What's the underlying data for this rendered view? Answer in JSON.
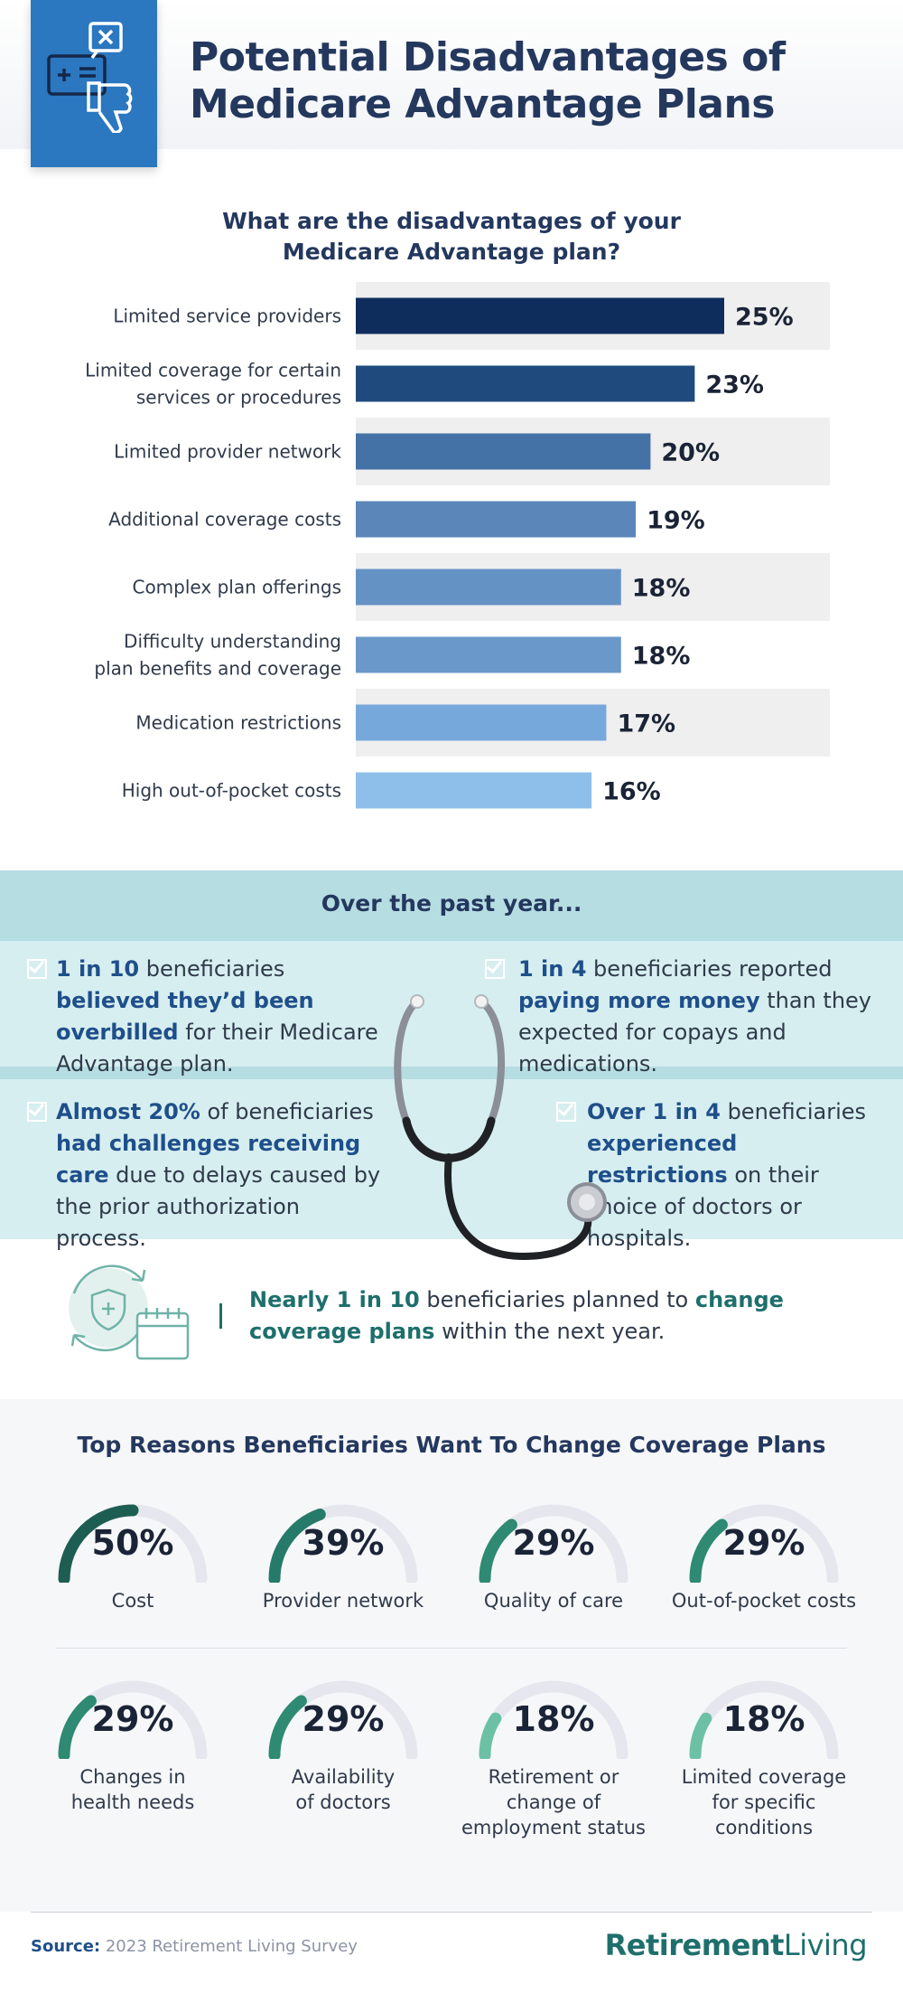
{
  "header": {
    "title_line1": "Potential Disadvantages of",
    "title_line2": "Medicare Advantage Plans",
    "icon": "medical-card-thumbs-down-icon"
  },
  "chart_data": {
    "type": "bar",
    "orientation": "horizontal",
    "title_line1": "What are the disadvantages of your",
    "title_line2": "Medicare Advantage plan?",
    "categories": [
      [
        "Limited service providers"
      ],
      [
        "Limited coverage for certain",
        "services or procedures"
      ],
      [
        "Limited provider network"
      ],
      [
        "Additional coverage costs"
      ],
      [
        "Complex plan offerings"
      ],
      [
        "Difficulty understanding",
        "plan benefits and coverage"
      ],
      [
        "Medication restrictions"
      ],
      [
        "High out-of-pocket costs"
      ]
    ],
    "values": [
      25,
      23,
      20,
      19,
      18,
      18,
      17,
      16
    ],
    "value_labels": [
      "25%",
      "23%",
      "20%",
      "19%",
      "18%",
      "18%",
      "17%",
      "16%"
    ],
    "bar_colors": [
      "#0f2d5c",
      "#1f4a7e",
      "#4472a6",
      "#5a86b9",
      "#6592c4",
      "#6a98ca",
      "#76a8dc",
      "#8dbfea"
    ],
    "axis_max": 30,
    "grid": false
  },
  "past_year": {
    "title": "Over the past year...",
    "stat1": {
      "a": "1 in 10",
      "b": " beneficiaries ",
      "c": "believed they’d been overbilled",
      "d": " for their Medicare Advantage plan."
    },
    "stat2": {
      "a": "1 in 4",
      "b": " beneficiaries reported ",
      "c": "paying more money",
      "d": " than they expected for copays and medications."
    },
    "stat3": {
      "a": "Almost 20%",
      "b": " of beneficiaries ",
      "c": "had challenges receiving care",
      "d": " due to delays caused by the prior authorization process."
    },
    "stat4": {
      "a": "Over 1 in 4",
      "b": " beneficiaries ",
      "c": "experienced restrictions",
      "d": " on their choice of doctors or hospitals."
    },
    "nearly": {
      "a": "Nearly 1 in 10",
      "b": " beneficiaries planned to ",
      "c": "change coverage plans",
      "d": " within the next year."
    }
  },
  "reasons": {
    "title": "Top Reasons Beneficiaries Want To Change Coverage Plans",
    "items": [
      {
        "pct": "50%",
        "value": 50,
        "label": "Cost",
        "color": "#1e5e52"
      },
      {
        "pct": "39%",
        "value": 39,
        "label": "Provider network",
        "color": "#267a69"
      },
      {
        "pct": "29%",
        "value": 29,
        "label": "Quality of care",
        "color": "#2e8a72"
      },
      {
        "pct": "29%",
        "value": 29,
        "label": "Out-of-pocket costs",
        "color": "#2e8a72"
      },
      {
        "pct": "29%",
        "value": 29,
        "label": "Changes in\nhealth needs",
        "color": "#2e8a72"
      },
      {
        "pct": "29%",
        "value": 29,
        "label": "Availability\nof doctors",
        "color": "#2e8a72"
      },
      {
        "pct": "18%",
        "value": 18,
        "label": "Retirement or\nchange of\nemployment status",
        "color": "#6cc1a4"
      },
      {
        "pct": "18%",
        "value": 18,
        "label": "Limited coverage\nfor specific\nconditions",
        "color": "#6cc1a4"
      }
    ],
    "track_color": "#e6e7ee"
  },
  "footer": {
    "source_label": "Source:",
    "source_text": " 2023 Retirement Living Survey",
    "brand_a": "Retirement",
    "brand_b": "Living"
  }
}
